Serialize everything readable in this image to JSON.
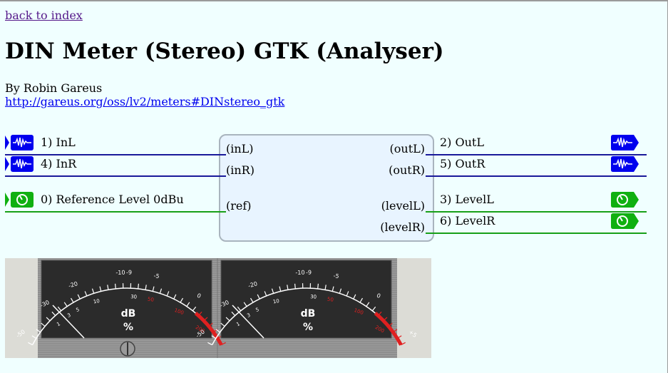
{
  "nav": {
    "back_label": "back to index"
  },
  "plugin": {
    "title": "DIN Meter (Stereo) GTK (Analyser)",
    "author": "By Robin Gareus",
    "uri": "http://gareus.org/oss/lv2/meters#DINstereo_gtk"
  },
  "ports": {
    "inputs": [
      {
        "label": "1) InL",
        "symbol": "(inL)",
        "type": "audio"
      },
      {
        "label": "4) InR",
        "symbol": "(inR)",
        "type": "audio"
      },
      {
        "label": "0) Reference Level 0dBu",
        "symbol": "(ref)",
        "type": "control"
      }
    ],
    "outputs": [
      {
        "label": "2) OutL",
        "symbol": "(outL)",
        "type": "audio"
      },
      {
        "label": "5) OutR",
        "symbol": "(outR)",
        "type": "audio"
      },
      {
        "label": "3) LevelL",
        "symbol": "(levelL)",
        "type": "control"
      },
      {
        "label": "6) LevelR",
        "symbol": "(levelR)",
        "type": "control"
      }
    ]
  },
  "meter": {
    "units_db": "dB",
    "units_pct": "%",
    "scale_labels": [
      "-50",
      "-30",
      "-20",
      "-10",
      "-9",
      "-5",
      "0",
      "+5",
      "1",
      "3",
      "5",
      "10",
      "30",
      "50",
      "100",
      "200"
    ],
    "accent_red": "#e02020",
    "face_color": "#2b2b2b"
  },
  "colors": {
    "audio_port": "#0000ee",
    "control_port": "#10b010",
    "link": "#0000ee"
  }
}
